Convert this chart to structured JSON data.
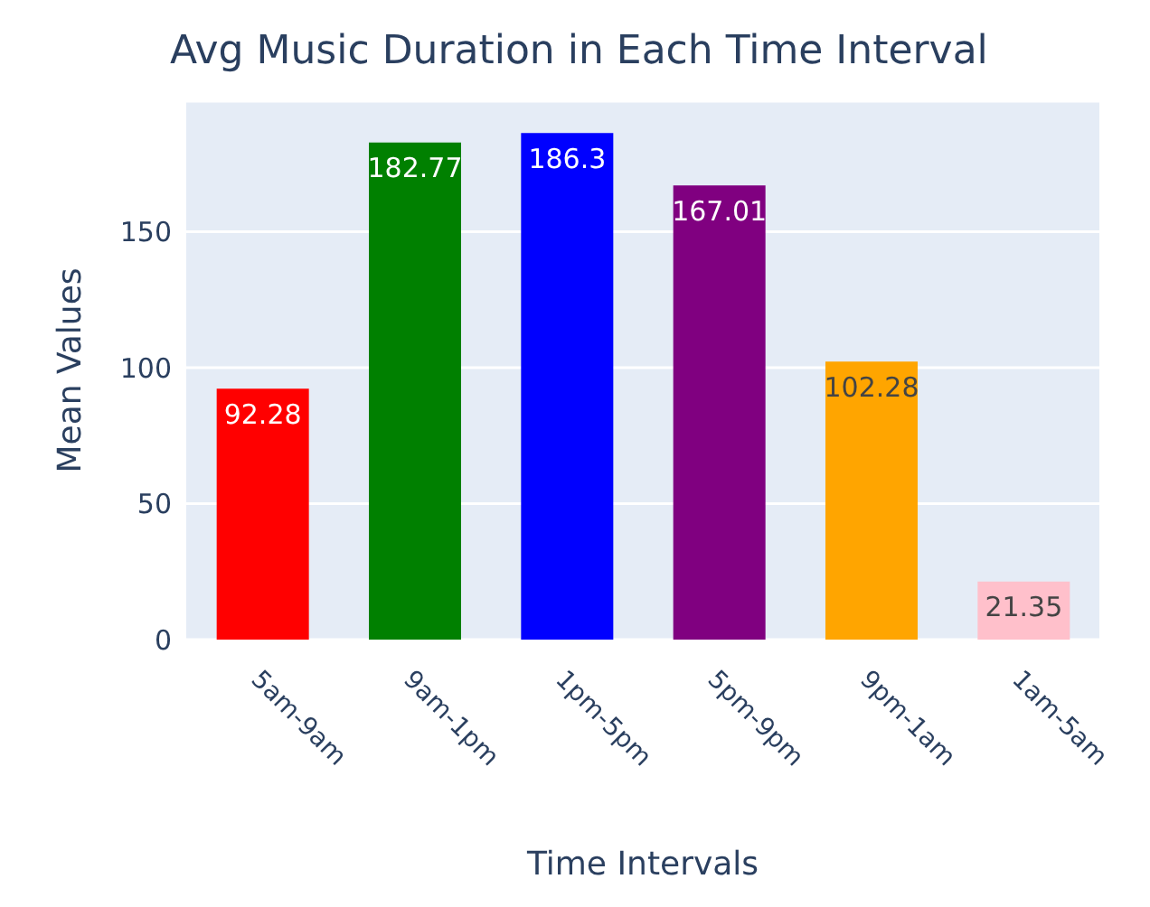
{
  "chart_data": {
    "type": "bar",
    "title": "Avg Music Duration in Each Time Interval",
    "xlabel": "Time Intervals",
    "ylabel": "Mean Values",
    "categories": [
      "5am-9am",
      "9am-1pm",
      "1pm-5pm",
      "5pm-9pm",
      "9pm-1am",
      "1am-5am"
    ],
    "values": [
      92.28,
      182.77,
      186.3,
      167.01,
      102.28,
      21.35
    ],
    "colors": [
      "#ff0000",
      "#008000",
      "#0000ff",
      "#800080",
      "#ffa500",
      "#ffc0cb"
    ],
    "ylim": [
      0,
      198
    ],
    "yticks": [
      0,
      50,
      100,
      150
    ],
    "grid": "y",
    "data_labels": true
  }
}
